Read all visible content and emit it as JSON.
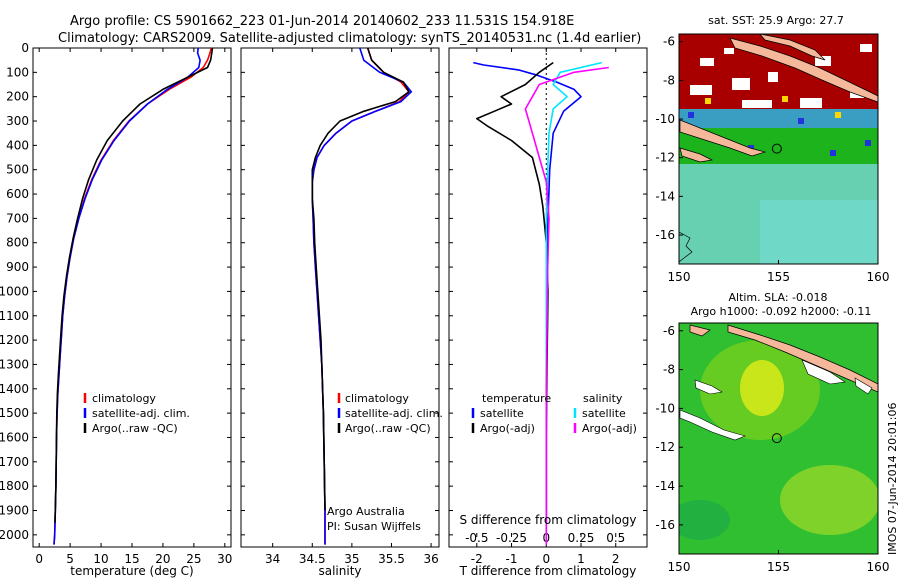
{
  "title_line1": "Argo profile: CS 5901662_223 01-Jun-2014 20140602_233 11.531S 154.918E",
  "title_line2": "Climatology: CARS2009. Satellite-adjusted climatology: synTS_20140531.nc (1.4d earlier)",
  "credit": "IMOS 07-Jun-2014 20:01:06",
  "colors": {
    "clim": "#ff0000",
    "sat": "#0000ff",
    "argo": "#000000",
    "sat_diff": "#00e5ff",
    "argo_s_diff": "#ff00ff"
  },
  "chart_data": [
    {
      "id": "temperature",
      "type": "line",
      "xlabel": "temperature (deg C)",
      "ylabel": "",
      "xlim": [
        -1,
        31
      ],
      "ylim": [
        2050,
        0
      ],
      "xticks": [
        0,
        5,
        10,
        15,
        20,
        25,
        30
      ],
      "yticks": [
        0,
        100,
        200,
        300,
        400,
        500,
        600,
        700,
        800,
        900,
        1000,
        1100,
        1200,
        1300,
        1400,
        1500,
        1600,
        1700,
        1800,
        1900,
        2000
      ],
      "legend": [
        "climatology",
        "satellite-adj. clim.",
        "Argo(..raw -QC)"
      ],
      "series": [
        {
          "name": "climatology",
          "color": "#ff0000",
          "x": [
            27.8,
            27.6,
            27.2,
            26.5,
            24.5,
            21.0,
            17.5,
            14.5,
            12.0,
            10.0,
            8.5,
            7.3,
            6.4,
            5.6,
            5.0,
            4.5,
            4.1,
            3.8,
            3.6,
            3.4,
            3.2,
            3.0,
            2.9,
            2.8,
            2.75,
            2.7,
            2.6,
            2.55,
            2.5,
            2.4
          ],
          "y": [
            0,
            20,
            50,
            80,
            120,
            170,
            230,
            300,
            380,
            460,
            540,
            620,
            700,
            780,
            860,
            940,
            1020,
            1100,
            1180,
            1260,
            1340,
            1420,
            1500,
            1600,
            1700,
            1800,
            1900,
            1950,
            2000,
            2040
          ]
        },
        {
          "name": "satellite-adj. clim.",
          "color": "#0000ff",
          "x": [
            25.7,
            25.6,
            26.0,
            25.8,
            24.0,
            20.7,
            17.5,
            14.6,
            12.1,
            10.1,
            8.6,
            7.4,
            6.4,
            5.6,
            5.0,
            4.5,
            4.1,
            3.8,
            3.6,
            3.4,
            3.2,
            3.0,
            2.9,
            2.8,
            2.75,
            2.7,
            2.6,
            2.55,
            2.5,
            2.4
          ],
          "y": [
            0,
            20,
            50,
            80,
            120,
            170,
            230,
            300,
            380,
            460,
            540,
            620,
            700,
            780,
            860,
            940,
            1020,
            1100,
            1180,
            1260,
            1340,
            1420,
            1500,
            1600,
            1700,
            1800,
            1900,
            1950,
            2000,
            2040
          ]
        },
        {
          "name": "Argo(..raw -QC)",
          "color": "#000000",
          "x": [
            28.0,
            27.9,
            27.7,
            27.2,
            24.0,
            20.0,
            16.3,
            13.5,
            11.0,
            9.3,
            8.0,
            7.0,
            6.2,
            5.5,
            4.9,
            4.4,
            4.0,
            3.7,
            3.5,
            3.3,
            3.1,
            2.95,
            2.85,
            2.8,
            2.75,
            2.7,
            2.6,
            2.55
          ],
          "y": [
            0,
            20,
            50,
            80,
            120,
            170,
            230,
            300,
            380,
            460,
            540,
            620,
            700,
            780,
            860,
            940,
            1020,
            1100,
            1180,
            1260,
            1340,
            1420,
            1500,
            1600,
            1700,
            1800,
            1900,
            1950
          ]
        }
      ]
    },
    {
      "id": "salinity",
      "type": "line",
      "xlabel": "salinity",
      "ylabel": "",
      "xlim": [
        33.6,
        36.1
      ],
      "ylim": [
        2050,
        0
      ],
      "xticks": [
        34,
        34.5,
        35,
        35.5,
        36
      ],
      "legend": [
        "climatology",
        "satellite-adj. clim.",
        "Argo(..raw -QC)"
      ],
      "annotation_line1": "Argo Australia",
      "annotation_line2": "PI: Susan Wijffels",
      "series": [
        {
          "name": "climatology",
          "color": "#ff0000",
          "x": [
            35.2,
            35.25,
            35.4,
            35.62,
            35.72,
            35.6,
            35.3,
            35.0,
            34.8,
            34.65,
            34.56,
            34.52,
            34.5,
            34.5,
            34.51,
            34.52,
            34.54,
            34.56,
            34.58,
            34.6,
            34.62,
            34.63,
            34.64,
            34.65,
            34.66,
            34.66
          ],
          "y": [
            0,
            50,
            100,
            140,
            180,
            220,
            260,
            300,
            350,
            400,
            450,
            500,
            550,
            620,
            700,
            800,
            900,
            1000,
            1100,
            1200,
            1300,
            1400,
            1500,
            1700,
            1900,
            2040
          ]
        },
        {
          "name": "satellite-adj. clim.",
          "color": "#0000ff",
          "x": [
            35.1,
            35.15,
            35.35,
            35.65,
            35.75,
            35.62,
            35.3,
            35.0,
            34.8,
            34.65,
            34.56,
            34.52,
            34.5,
            34.5,
            34.51,
            34.52,
            34.54,
            34.56,
            34.58,
            34.6,
            34.62,
            34.63,
            34.64,
            34.65,
            34.66,
            34.66
          ],
          "y": [
            0,
            50,
            100,
            140,
            180,
            220,
            260,
            300,
            350,
            400,
            450,
            500,
            550,
            620,
            700,
            800,
            900,
            1000,
            1100,
            1200,
            1300,
            1400,
            1500,
            1700,
            1900,
            2040
          ]
        },
        {
          "name": "Argo(..raw -QC)",
          "color": "#000000",
          "x": [
            35.2,
            35.25,
            35.4,
            35.65,
            35.72,
            35.55,
            35.15,
            34.85,
            34.7,
            34.6,
            34.54,
            34.5,
            34.5,
            34.5,
            34.52,
            34.53,
            34.55,
            34.57,
            34.59,
            34.61,
            34.62,
            34.63,
            34.64,
            34.65,
            34.66
          ],
          "y": [
            0,
            50,
            100,
            140,
            180,
            220,
            260,
            300,
            350,
            400,
            450,
            500,
            550,
            620,
            700,
            800,
            900,
            1000,
            1100,
            1200,
            1300,
            1400,
            1500,
            1700,
            1900
          ]
        }
      ]
    },
    {
      "id": "differences",
      "type": "line",
      "xlabel": "T difference from climatology",
      "xlabel_top": "S difference from climatology",
      "xlim": [
        -2.8,
        2.9
      ],
      "ylim": [
        2050,
        0
      ],
      "xticks_T": [
        -2,
        -1,
        0,
        1,
        2
      ],
      "xticks_S": [
        -0.5,
        -0.25,
        0,
        0.25,
        0.5
      ],
      "legend_temperature_header": "temperature",
      "legend_salinity_header": "salinity",
      "legend_temperature": [
        "satellite",
        "Argo(-adj)"
      ],
      "legend_salinity": [
        "satellite",
        "Argo(-adj)"
      ],
      "series": [
        {
          "name": "T satellite",
          "color": "#0000ff",
          "x": [
            -2.1,
            -1.8,
            -0.8,
            -0.3,
            0.3,
            0.8,
            1.0,
            0.5,
            0.2,
            0.1,
            0.05,
            0.02,
            0,
            0
          ],
          "y": [
            60,
            70,
            90,
            110,
            140,
            170,
            200,
            260,
            350,
            500,
            700,
            900,
            1200,
            1950
          ]
        },
        {
          "name": "T Argo(-adj)",
          "color": "#000000",
          "x": [
            0.2,
            -0.2,
            -0.6,
            -1.3,
            -1.0,
            -1.5,
            -2.0,
            -1.7,
            -1.0,
            -0.4,
            -0.2,
            -0.1,
            0,
            0.05,
            0.02,
            0,
            0
          ],
          "y": [
            60,
            100,
            150,
            200,
            230,
            260,
            290,
            320,
            380,
            450,
            560,
            650,
            800,
            1000,
            1300,
            1600,
            1950
          ]
        },
        {
          "name": "S satellite",
          "color": "#00e5ff",
          "x": [
            0.4,
            0.1,
            0.05,
            0.15,
            0.05,
            0.02,
            0.01,
            0,
            0,
            0,
            0
          ],
          "y": [
            60,
            100,
            150,
            200,
            250,
            350,
            500,
            700,
            1000,
            1500,
            2040
          ]
        },
        {
          "name": "S Argo(-adj)",
          "color": "#ff00ff",
          "x": [
            0.45,
            0.2,
            -0.05,
            -0.1,
            -0.15,
            -0.1,
            -0.05,
            0,
            0.02,
            0.01,
            0,
            0
          ],
          "y": [
            80,
            100,
            150,
            200,
            250,
            350,
            450,
            550,
            700,
            900,
            1400,
            2040
          ]
        }
      ]
    },
    {
      "id": "sst_map",
      "type": "heatmap",
      "title": "sat. SST: 25.9 Argo: 27.7",
      "xlim": [
        150,
        160
      ],
      "ylim": [
        -17.5,
        -5.6
      ],
      "xticks": [
        150,
        155,
        160
      ],
      "yticks": [
        -6,
        -8,
        -10,
        -12,
        -14,
        -16
      ],
      "profile_position": [
        154.918,
        -11.531
      ]
    },
    {
      "id": "sla_map",
      "type": "heatmap",
      "title_line1": "Altim. SLA: -0.018",
      "title_line2": "Argo h1000: -0.092 h2000: -0.11",
      "xlim": [
        150,
        160
      ],
      "ylim": [
        -17.5,
        -5.6
      ],
      "xticks": [
        150,
        155,
        160
      ],
      "yticks": [
        -6,
        -8,
        -10,
        -12,
        -14,
        -16
      ],
      "profile_position": [
        154.918,
        -11.531
      ]
    }
  ]
}
